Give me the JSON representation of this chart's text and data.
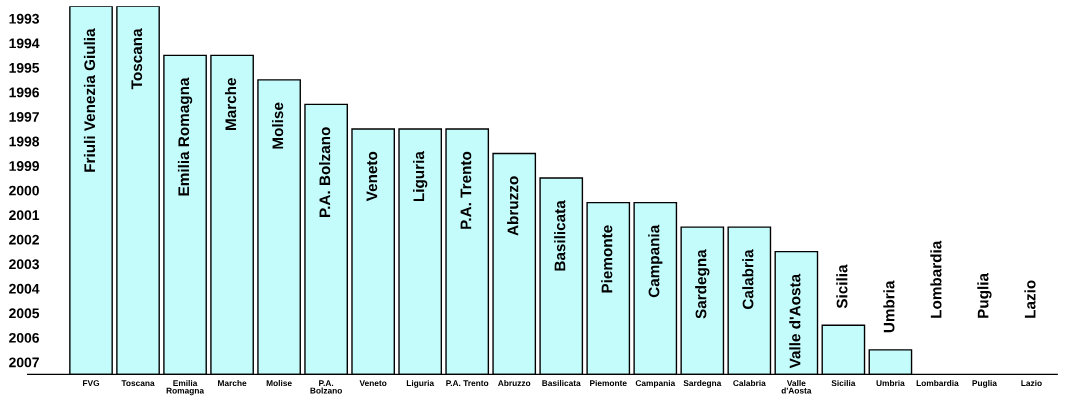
{
  "chart_data": {
    "type": "bar",
    "categories": [
      "FVG",
      "Toscana",
      "Emilia\nRomagna",
      "Marche",
      "Molise",
      "P.A.\nBolzano",
      "Veneto",
      "Liguria",
      "P.A. Trento",
      "Abruzzo",
      "Basilicata",
      "Piemonte",
      "Campania",
      "Sardegna",
      "Calabria",
      "Valle\nd'Aosta",
      "Sicilia",
      "Umbria",
      "Lombardia",
      "Puglia",
      "Lazio"
    ],
    "base": [
      1993,
      1993,
      1995,
      1995,
      1996,
      1997,
      1998,
      1998,
      1998,
      1999,
      2000,
      2001,
      2001,
      2002,
      2002,
      2003,
      2006,
      2007,
      null,
      null,
      null
    ],
    "values": [
      15,
      15,
      13,
      13,
      12,
      11,
      10,
      10,
      10,
      9,
      8,
      7,
      7,
      6,
      6,
      5,
      2,
      1,
      null,
      null,
      null
    ],
    "color": "#c4fcfc",
    "ylim": [
      2008,
      1993
    ],
    "yticks": [
      {
        "value": 1993.5,
        "label": "1993"
      },
      {
        "value": 1994.5,
        "label": "1994"
      },
      {
        "value": 1995.5,
        "label": "1995"
      },
      {
        "value": 1996.5,
        "label": "1996"
      },
      {
        "value": 1997.5,
        "label": "1997"
      },
      {
        "value": 1998.5,
        "label": "1998"
      },
      {
        "value": 1999.5,
        "label": "1999"
      },
      {
        "value": 2000.5,
        "label": "2000"
      },
      {
        "value": 2001.5,
        "label": "2001"
      },
      {
        "value": 2002.5,
        "label": "2002"
      },
      {
        "value": 2003.5,
        "label": "2003"
      },
      {
        "value": 2004.5,
        "label": "2004"
      },
      {
        "value": 2005.5,
        "label": "2005"
      },
      {
        "value": 2006.5,
        "label": "2006"
      },
      {
        "value": 2007.5,
        "label": "2007"
      }
    ],
    "annotations": [
      "Friuli Venezia Giulia",
      "Toscana",
      "Emilia Romagna",
      "Marche",
      "Molise",
      "P.A. Bolzano",
      "Veneto",
      "Liguria",
      "P.A. Trento",
      "Abruzzo",
      "Basilicata",
      "Piemonte",
      "Campania",
      "Sardegna",
      "Calabria",
      "Valle d'Aosta",
      "Sicilia",
      "Umbria",
      "Lombardia",
      "Puglia",
      "Lazio"
    ],
    "grid": false
  }
}
